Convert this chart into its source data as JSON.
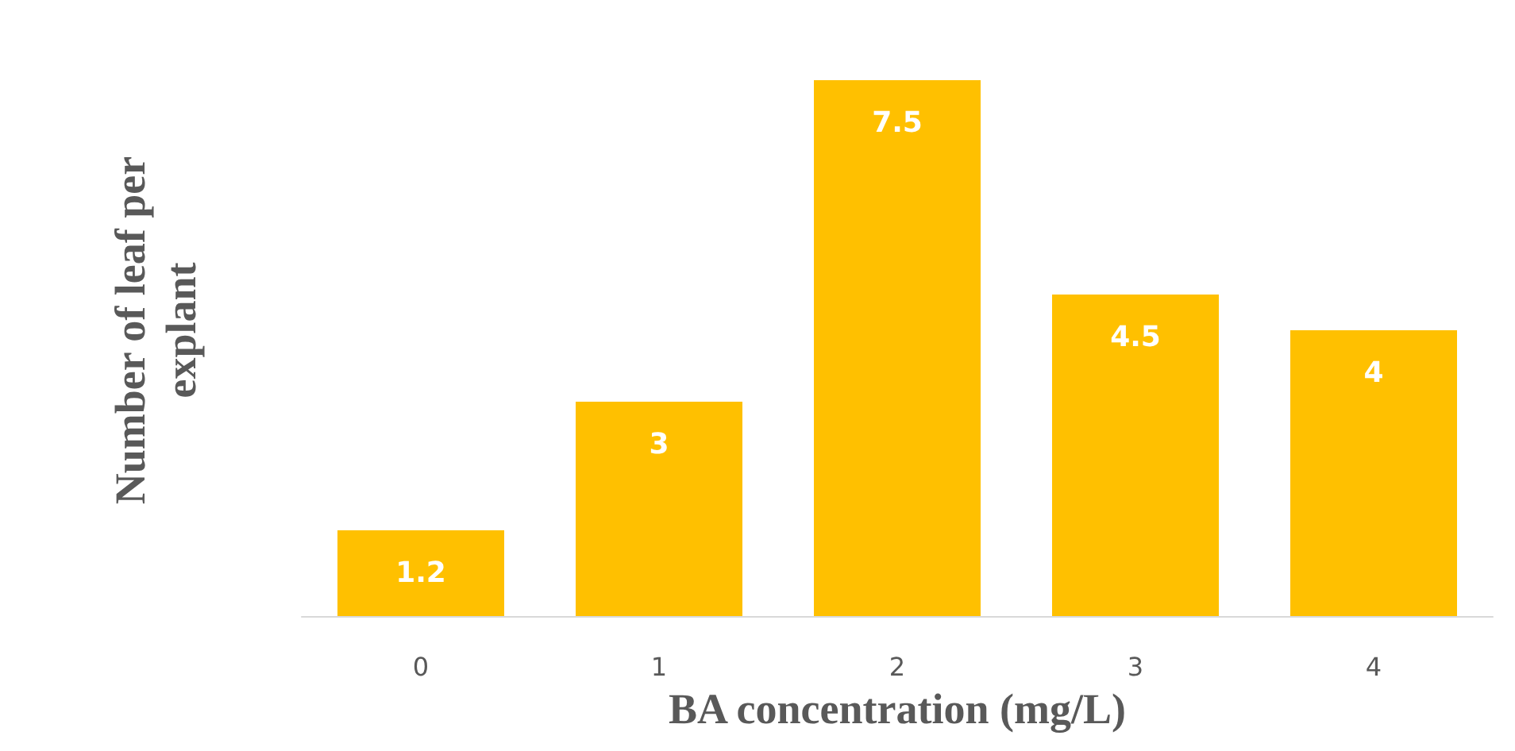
{
  "chart_data": {
    "type": "bar",
    "xlabel": "BA concentration (mg/L)",
    "ylabel": "Number of leaf per explant",
    "categories": [
      "0",
      "1",
      "2",
      "3",
      "4"
    ],
    "values": [
      1.2,
      3,
      7.5,
      4.5,
      4
    ],
    "color": "#ffc000",
    "data_labels": true,
    "tick_labels": "x"
  }
}
